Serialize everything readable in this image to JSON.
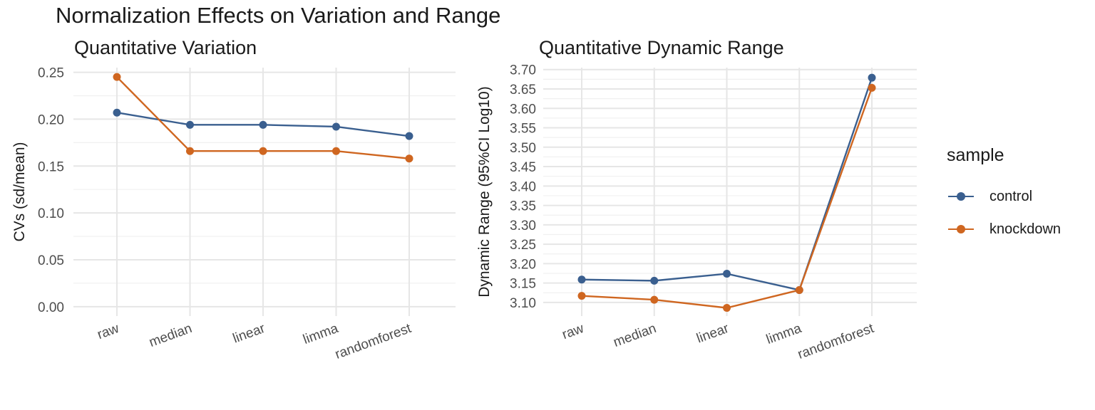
{
  "title": "Normalization Effects on Variation and Range",
  "colors": {
    "control": "#3a5f8f",
    "knockdown": "#cf6620",
    "grid_major": "#e6e6e6",
    "grid_minor": "#f0f0f0",
    "tick_text": "#4d4d4d"
  },
  "legend": {
    "title": "sample",
    "position": "right",
    "items": [
      {
        "label": "control",
        "color": "#3a5f8f"
      },
      {
        "label": "knockdown",
        "color": "#cf6620"
      }
    ]
  },
  "chart_data": [
    {
      "type": "line",
      "title": "Quantitative Variation",
      "xlabel": "",
      "ylabel": "CVs (sd/mean)",
      "categories": [
        "raw",
        "median",
        "linear",
        "limma",
        "randomforest"
      ],
      "ylim": [
        -0.01,
        0.255
      ],
      "yticks": [
        "0.00",
        "0.05",
        "0.10",
        "0.15",
        "0.20",
        "0.25"
      ],
      "grid": true,
      "series": [
        {
          "name": "control",
          "values": [
            0.207,
            0.194,
            0.194,
            0.192,
            0.182
          ]
        },
        {
          "name": "knockdown",
          "values": [
            0.245,
            0.166,
            0.166,
            0.166,
            0.158
          ]
        }
      ]
    },
    {
      "type": "line",
      "title": "Quantitative Dynamic Range",
      "xlabel": "",
      "ylabel": "Dynamic Range (95%CI Log10)",
      "categories": [
        "raw",
        "median",
        "linear",
        "limma",
        "randomforest"
      ],
      "ylim": [
        3.065,
        3.705
      ],
      "yticks": [
        "3.10",
        "3.15",
        "3.20",
        "3.25",
        "3.30",
        "3.35",
        "3.40",
        "3.45",
        "3.50",
        "3.55",
        "3.60",
        "3.65",
        "3.70"
      ],
      "grid": true,
      "series": [
        {
          "name": "control",
          "values": [
            3.159,
            3.156,
            3.174,
            3.132,
            3.679
          ]
        },
        {
          "name": "knockdown",
          "values": [
            3.117,
            3.107,
            3.086,
            3.132,
            3.653
          ]
        }
      ]
    }
  ]
}
